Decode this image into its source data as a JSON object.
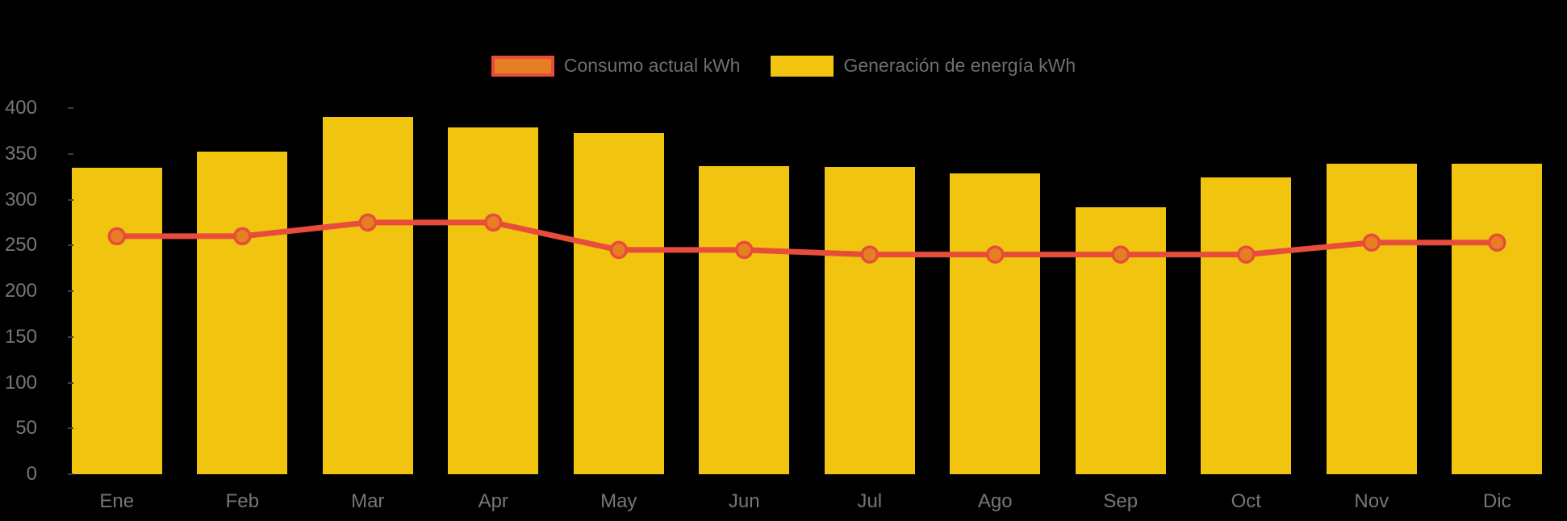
{
  "chart_data": {
    "type": "bar",
    "subtype": "bar-line-combo",
    "title": "",
    "categories": [
      "Ene",
      "Feb",
      "Mar",
      "Apr",
      "May",
      "Jun",
      "Jul",
      "Ago",
      "Sep",
      "Oct",
      "Nov",
      "Dic"
    ],
    "series": [
      {
        "name": "Consumo actual kWh",
        "type": "line",
        "color": "#E74C3C",
        "point_fill": "#E67E22",
        "values": [
          260,
          260,
          275,
          275,
          245,
          245,
          240,
          240,
          240,
          240,
          253,
          253
        ]
      },
      {
        "name": "Generación de energía kWh",
        "type": "bar",
        "color": "#F1C40F",
        "values": [
          335,
          352,
          390,
          379,
          373,
          337,
          336,
          329,
          292,
          324,
          339,
          339
        ]
      }
    ],
    "xlabel": "",
    "ylabel": "",
    "ylim": [
      0,
      400
    ],
    "yticks": [
      0,
      50,
      100,
      150,
      200,
      250,
      300,
      350,
      400
    ],
    "grid": false,
    "legend_position": "top-center",
    "background": "#000000",
    "axis_text_color": "#767676",
    "legend_text_color": "#6E6E6E"
  }
}
